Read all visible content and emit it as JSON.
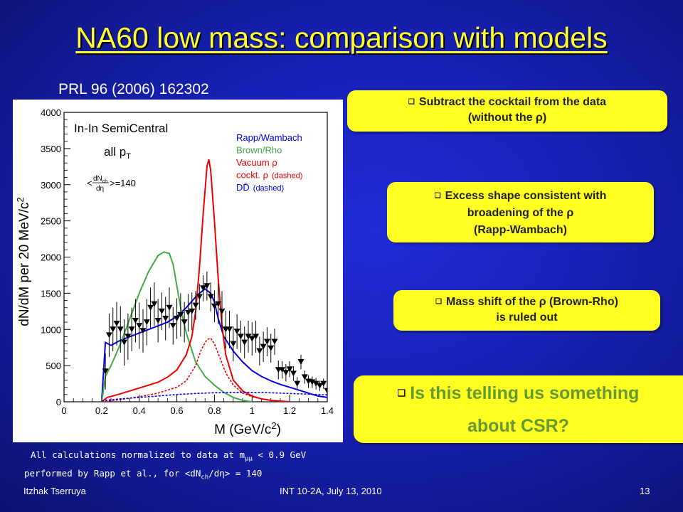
{
  "slide": {
    "title": "NA60 low mass: comparison with models",
    "reference": "PRL 96 (2006) 162302",
    "slide_number": "13"
  },
  "callouts": {
    "c1_line1": "Subtract the cocktail from the data",
    "c1_line2": "(without the ρ)",
    "c2_line1": "Excess shape consistent with",
    "c2_line2": "broadening of the ρ",
    "c2_line3": "(Rapp-Wambach)",
    "c3_line1": "Mass shift of the ρ (Brown-Rho)",
    "c3_line2": "is ruled out",
    "c4_line1": "Is this telling us something",
    "c4_line2": "about CSR?"
  },
  "note": {
    "line1_pre": "All calculations normalized to data at m",
    "line1_sub": "μμ",
    "line1_post": " < 0.9 GeV",
    "line2_pre": "performed by Rapp et al., for <dN",
    "line2_sub": "ch",
    "line2_mid": "/dη> = 140"
  },
  "footer": {
    "author": "Itzhak Tserruya",
    "event": "INT 10-2A, July 13, 2010"
  },
  "colors": {
    "title": "#ffff33",
    "callout_bg": "#ffff22",
    "callout_text": "#222222",
    "csr_text": "#669933",
    "rapp": "#0000ee",
    "brown": "#44aa44",
    "vacuum": "#ee0000",
    "cocktail": "#ee0000",
    "ddbar": "#0000ee"
  },
  "icons": [
    "square-bullet-icon"
  ],
  "chart_data": {
    "type": "line",
    "xlabel": "M (GeV/c",
    "xlabel_sup": "2",
    "xlabel_end": ")",
    "ylabel": "dN/dM per 20 MeV/c",
    "ylabel_sup": "2",
    "xlim": [
      0,
      1.4
    ],
    "ylim": [
      0,
      4000
    ],
    "xticks": [
      "0",
      "0.2",
      "0.4",
      "0.6",
      "0.8",
      "1",
      "1.2",
      "1.4"
    ],
    "yticks": [
      "0",
      "500",
      "1000",
      "1500",
      "2000",
      "2500",
      "3000",
      "3500",
      "4000"
    ],
    "annotations": {
      "system": "In-In SemiCentral",
      "pt": "all p",
      "pt_sub": "T",
      "mult_pre": "<",
      "mult_num": "dN",
      "mult_num_sub": "ch",
      "mult_den": "dη",
      "mult_post": ">=140"
    },
    "legend": {
      "position": "top-right",
      "entries": [
        {
          "label": "Rapp/Wambach",
          "color": "#0000ee"
        },
        {
          "label": "Brown/Rho",
          "color": "#44aa44"
        },
        {
          "label": "Vacuum ρ",
          "color": "#ee0000"
        },
        {
          "label": "cockt. ρ",
          "suffix": "(dashed)",
          "color": "#ee0000"
        },
        {
          "label": "DD̄",
          "suffix": "(dashed)",
          "color": "#0000ee"
        }
      ]
    },
    "series": [
      {
        "name": "Rapp/Wambach",
        "color": "#0000ee",
        "style": "solid",
        "x": [
          0.2,
          0.22,
          0.25,
          0.3,
          0.35,
          0.4,
          0.45,
          0.5,
          0.55,
          0.6,
          0.65,
          0.7,
          0.72,
          0.75,
          0.78,
          0.8,
          0.82,
          0.85,
          0.9,
          0.95,
          1.0,
          1.05,
          1.1,
          1.15,
          1.2,
          1.25,
          1.3,
          1.35,
          1.4
        ],
        "y": [
          0,
          820,
          780,
          850,
          900,
          950,
          1000,
          1050,
          1100,
          1180,
          1300,
          1450,
          1500,
          1560,
          1500,
          1380,
          1150,
          900,
          700,
          550,
          430,
          350,
          290,
          240,
          200,
          160,
          120,
          80,
          60
        ]
      },
      {
        "name": "Brown/Rho",
        "color": "#44aa44",
        "style": "solid",
        "x": [
          0.2,
          0.22,
          0.25,
          0.3,
          0.35,
          0.4,
          0.45,
          0.5,
          0.53,
          0.56,
          0.58,
          0.6,
          0.62,
          0.65,
          0.7,
          0.75,
          0.8,
          0.85,
          0.9,
          0.95,
          1.0
        ],
        "y": [
          0,
          350,
          500,
          800,
          1150,
          1500,
          1800,
          2020,
          2070,
          2050,
          1900,
          1600,
          1300,
          950,
          550,
          350,
          230,
          130,
          60,
          20,
          0
        ]
      },
      {
        "name": "Vacuum ρ",
        "color": "#ee0000",
        "style": "solid",
        "x": [
          0.2,
          0.23,
          0.3,
          0.4,
          0.5,
          0.55,
          0.6,
          0.65,
          0.68,
          0.7,
          0.72,
          0.74,
          0.76,
          0.77,
          0.78,
          0.8,
          0.82,
          0.84,
          0.86,
          0.9,
          0.95,
          1.0,
          1.05,
          1.1,
          1.15,
          1.2
        ],
        "y": [
          0,
          60,
          110,
          190,
          270,
          340,
          440,
          650,
          900,
          1250,
          1850,
          2600,
          3250,
          3350,
          3200,
          2500,
          1700,
          1050,
          650,
          300,
          150,
          80,
          40,
          20,
          10,
          0
        ]
      },
      {
        "name": "cockt. ρ",
        "color": "#ee0000",
        "style": "dashed",
        "x": [
          0.2,
          0.3,
          0.4,
          0.5,
          0.6,
          0.65,
          0.7,
          0.73,
          0.76,
          0.78,
          0.8,
          0.83,
          0.86,
          0.9,
          0.95,
          1.0,
          1.05,
          1.1,
          1.2
        ],
        "y": [
          0,
          30,
          70,
          120,
          200,
          290,
          500,
          720,
          860,
          880,
          800,
          600,
          400,
          230,
          120,
          70,
          40,
          20,
          0
        ]
      },
      {
        "name": "DD̄",
        "color": "#0000ee",
        "style": "dashed",
        "x": [
          0.2,
          0.3,
          0.4,
          0.5,
          0.6,
          0.7,
          0.8,
          0.9,
          1.0,
          1.1,
          1.2,
          1.3,
          1.4
        ],
        "y": [
          15,
          40,
          60,
          80,
          100,
          115,
          125,
          130,
          130,
          125,
          115,
          105,
          95
        ]
      },
      {
        "name": "",
        "color": "#000000",
        "style": "markers",
        "x": [
          0.22,
          0.24,
          0.26,
          0.28,
          0.3,
          0.32,
          0.34,
          0.36,
          0.38,
          0.4,
          0.42,
          0.44,
          0.46,
          0.48,
          0.5,
          0.52,
          0.54,
          0.56,
          0.58,
          0.6,
          0.62,
          0.64,
          0.66,
          0.68,
          0.7,
          0.72,
          0.74,
          0.76,
          0.78,
          0.8,
          0.82,
          0.84,
          0.86,
          0.88,
          0.9,
          0.92,
          0.94,
          0.96,
          0.98,
          1.0,
          1.02,
          1.04,
          1.06,
          1.08,
          1.1,
          1.12,
          1.14,
          1.16,
          1.18,
          1.2,
          1.22,
          1.24,
          1.26,
          1.28,
          1.3,
          1.32,
          1.34,
          1.36,
          1.38,
          1.4
        ],
        "y": [
          420,
          920,
          1000,
          1080,
          1000,
          820,
          900,
          1000,
          1120,
          1050,
          980,
          1100,
          1300,
          1350,
          1120,
          1250,
          1150,
          1300,
          1050,
          1150,
          1200,
          1100,
          1230,
          1250,
          1330,
          1450,
          1570,
          1600,
          1450,
          1320,
          1350,
          1250,
          1000,
          1000,
          800,
          970,
          900,
          820,
          900,
          870,
          900,
          700,
          760,
          830,
          740,
          830,
          440,
          440,
          400,
          450,
          390,
          250,
          550,
          340,
          280,
          270,
          250,
          220,
          250,
          150
        ],
        "err": [
          250,
          300,
          300,
          300,
          320,
          320,
          320,
          300,
          300,
          320,
          300,
          320,
          280,
          300,
          300,
          260,
          300,
          280,
          260,
          280,
          300,
          280,
          260,
          260,
          200,
          180,
          180,
          200,
          200,
          220,
          280,
          280,
          260,
          260,
          240,
          240,
          220,
          220,
          220,
          230,
          220,
          200,
          210,
          200,
          200,
          180,
          130,
          120,
          120,
          110,
          100,
          90,
          100,
          90,
          90,
          80,
          80,
          70,
          70,
          60
        ]
      }
    ]
  }
}
